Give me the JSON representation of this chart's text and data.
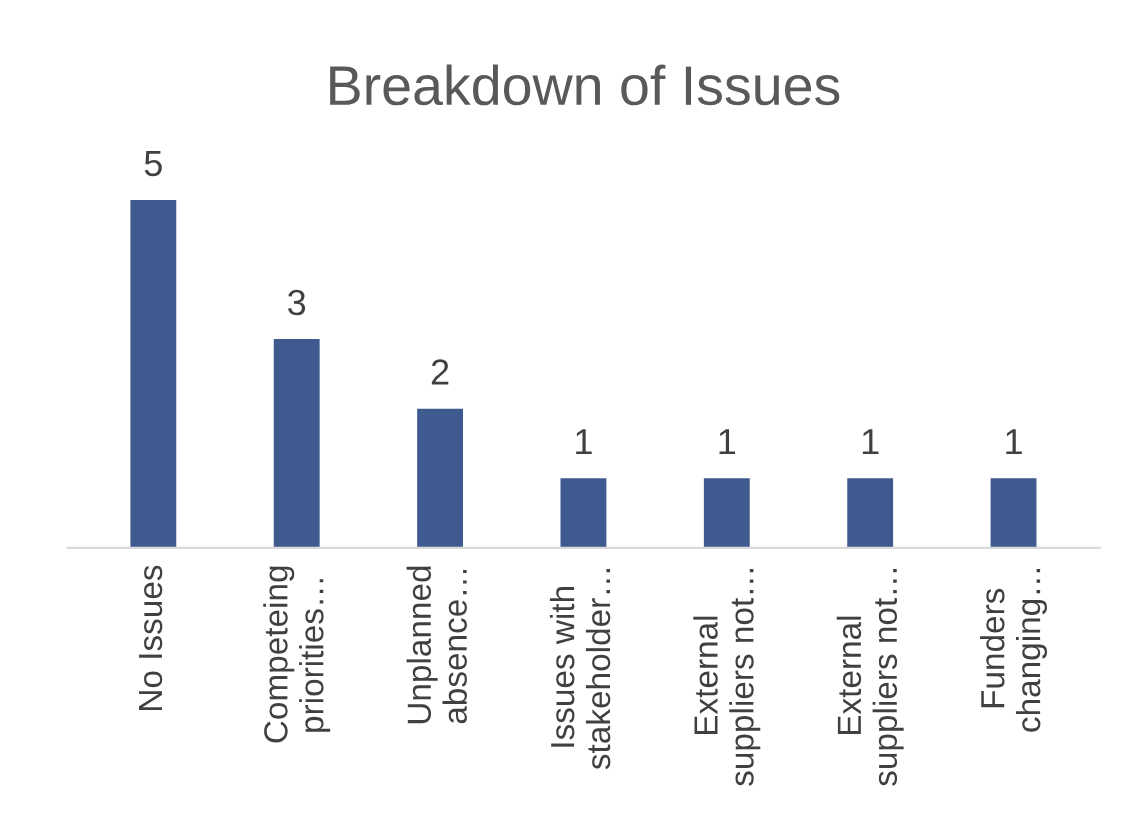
{
  "chart_data": {
    "type": "bar",
    "title": "Breakdown of Issues",
    "categories": [
      "No Issues",
      "Competeing\npriorities…",
      "Unplanned\nabsence…",
      "Issues with\nstakeholder…",
      "External\nsuppliers not…",
      "External\nsuppliers not…",
      "Funders\nchanging…"
    ],
    "values": [
      5,
      3,
      2,
      1,
      1,
      1,
      1
    ],
    "color": "#3f5a8f",
    "data_labels": true,
    "grid": false,
    "legend": false
  }
}
